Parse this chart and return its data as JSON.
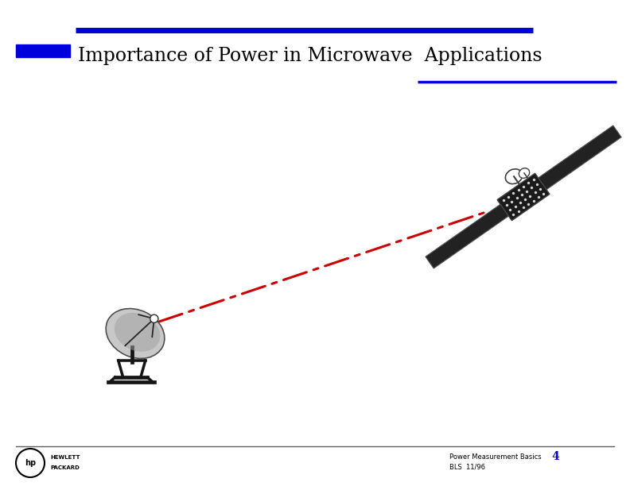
{
  "title": "Importance of Power in Microwave  Applications",
  "footer_text1": "Power Measurement Basics",
  "footer_page": "4",
  "footer_text2": "BLS  11/96",
  "header_line_color": "#0000dd",
  "sub_line_color": "#0000dd",
  "title_fontsize": 17,
  "beam_color": "#cc0000",
  "background_color": "#ffffff"
}
